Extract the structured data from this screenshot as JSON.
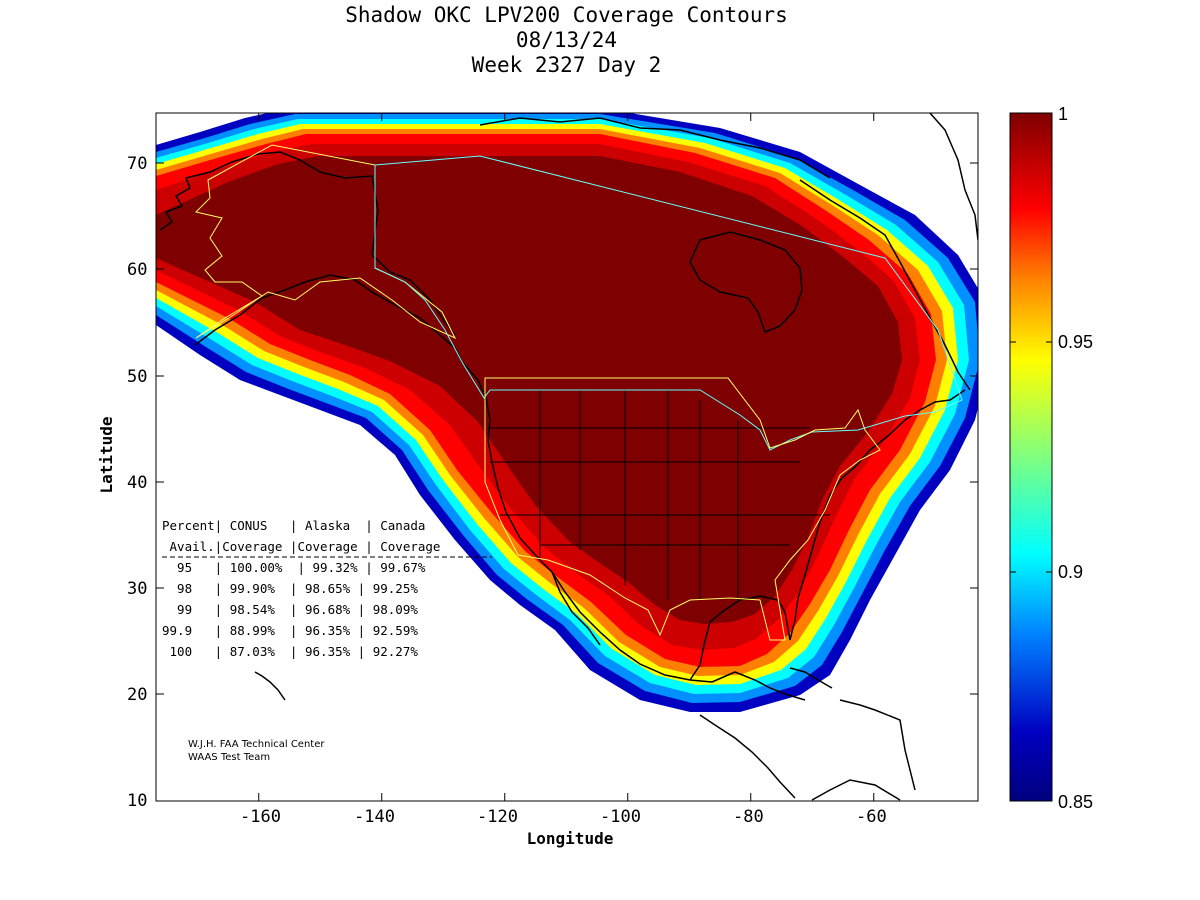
{
  "title": {
    "line1": "Shadow OKC LPV200 Coverage Contours",
    "line2": "08/13/24",
    "line3": "Week 2327 Day 2"
  },
  "axes": {
    "xlabel": "Longitude",
    "ylabel": "Latitude",
    "xticks": [
      "-160",
      "-140",
      "-120",
      "-100",
      "-80",
      "-60"
    ],
    "yticks": [
      "70",
      "60",
      "50",
      "40",
      "30",
      "20",
      "10"
    ]
  },
  "colorbar": {
    "labels": [
      "1",
      "0.95",
      "0.9",
      "0.85"
    ],
    "colors": [
      "#7f0000",
      "#ff0000",
      "#ff8000",
      "#ffff00",
      "#00ffff",
      "#0080ff",
      "#0000c0",
      "#00007f"
    ]
  },
  "table": {
    "header1": "Percent| CONUS   | Alaska  | Canada",
    "header2": " Avail.|Coverage |Coverage | Coverage",
    "rows": [
      "  95   | 100.00%  | 99.32% | 99.67%",
      "  98   | 99.90%  | 98.65% | 99.25%",
      "  99   | 98.54%  | 96.68% | 98.09%",
      "99.9   | 88.99%  | 96.35% | 92.59%",
      " 100   | 87.03%  | 96.35% | 92.27%"
    ]
  },
  "credit": {
    "line1": "W.J.H. FAA Technical Center",
    "line2": "WAAS Test Team"
  }
}
